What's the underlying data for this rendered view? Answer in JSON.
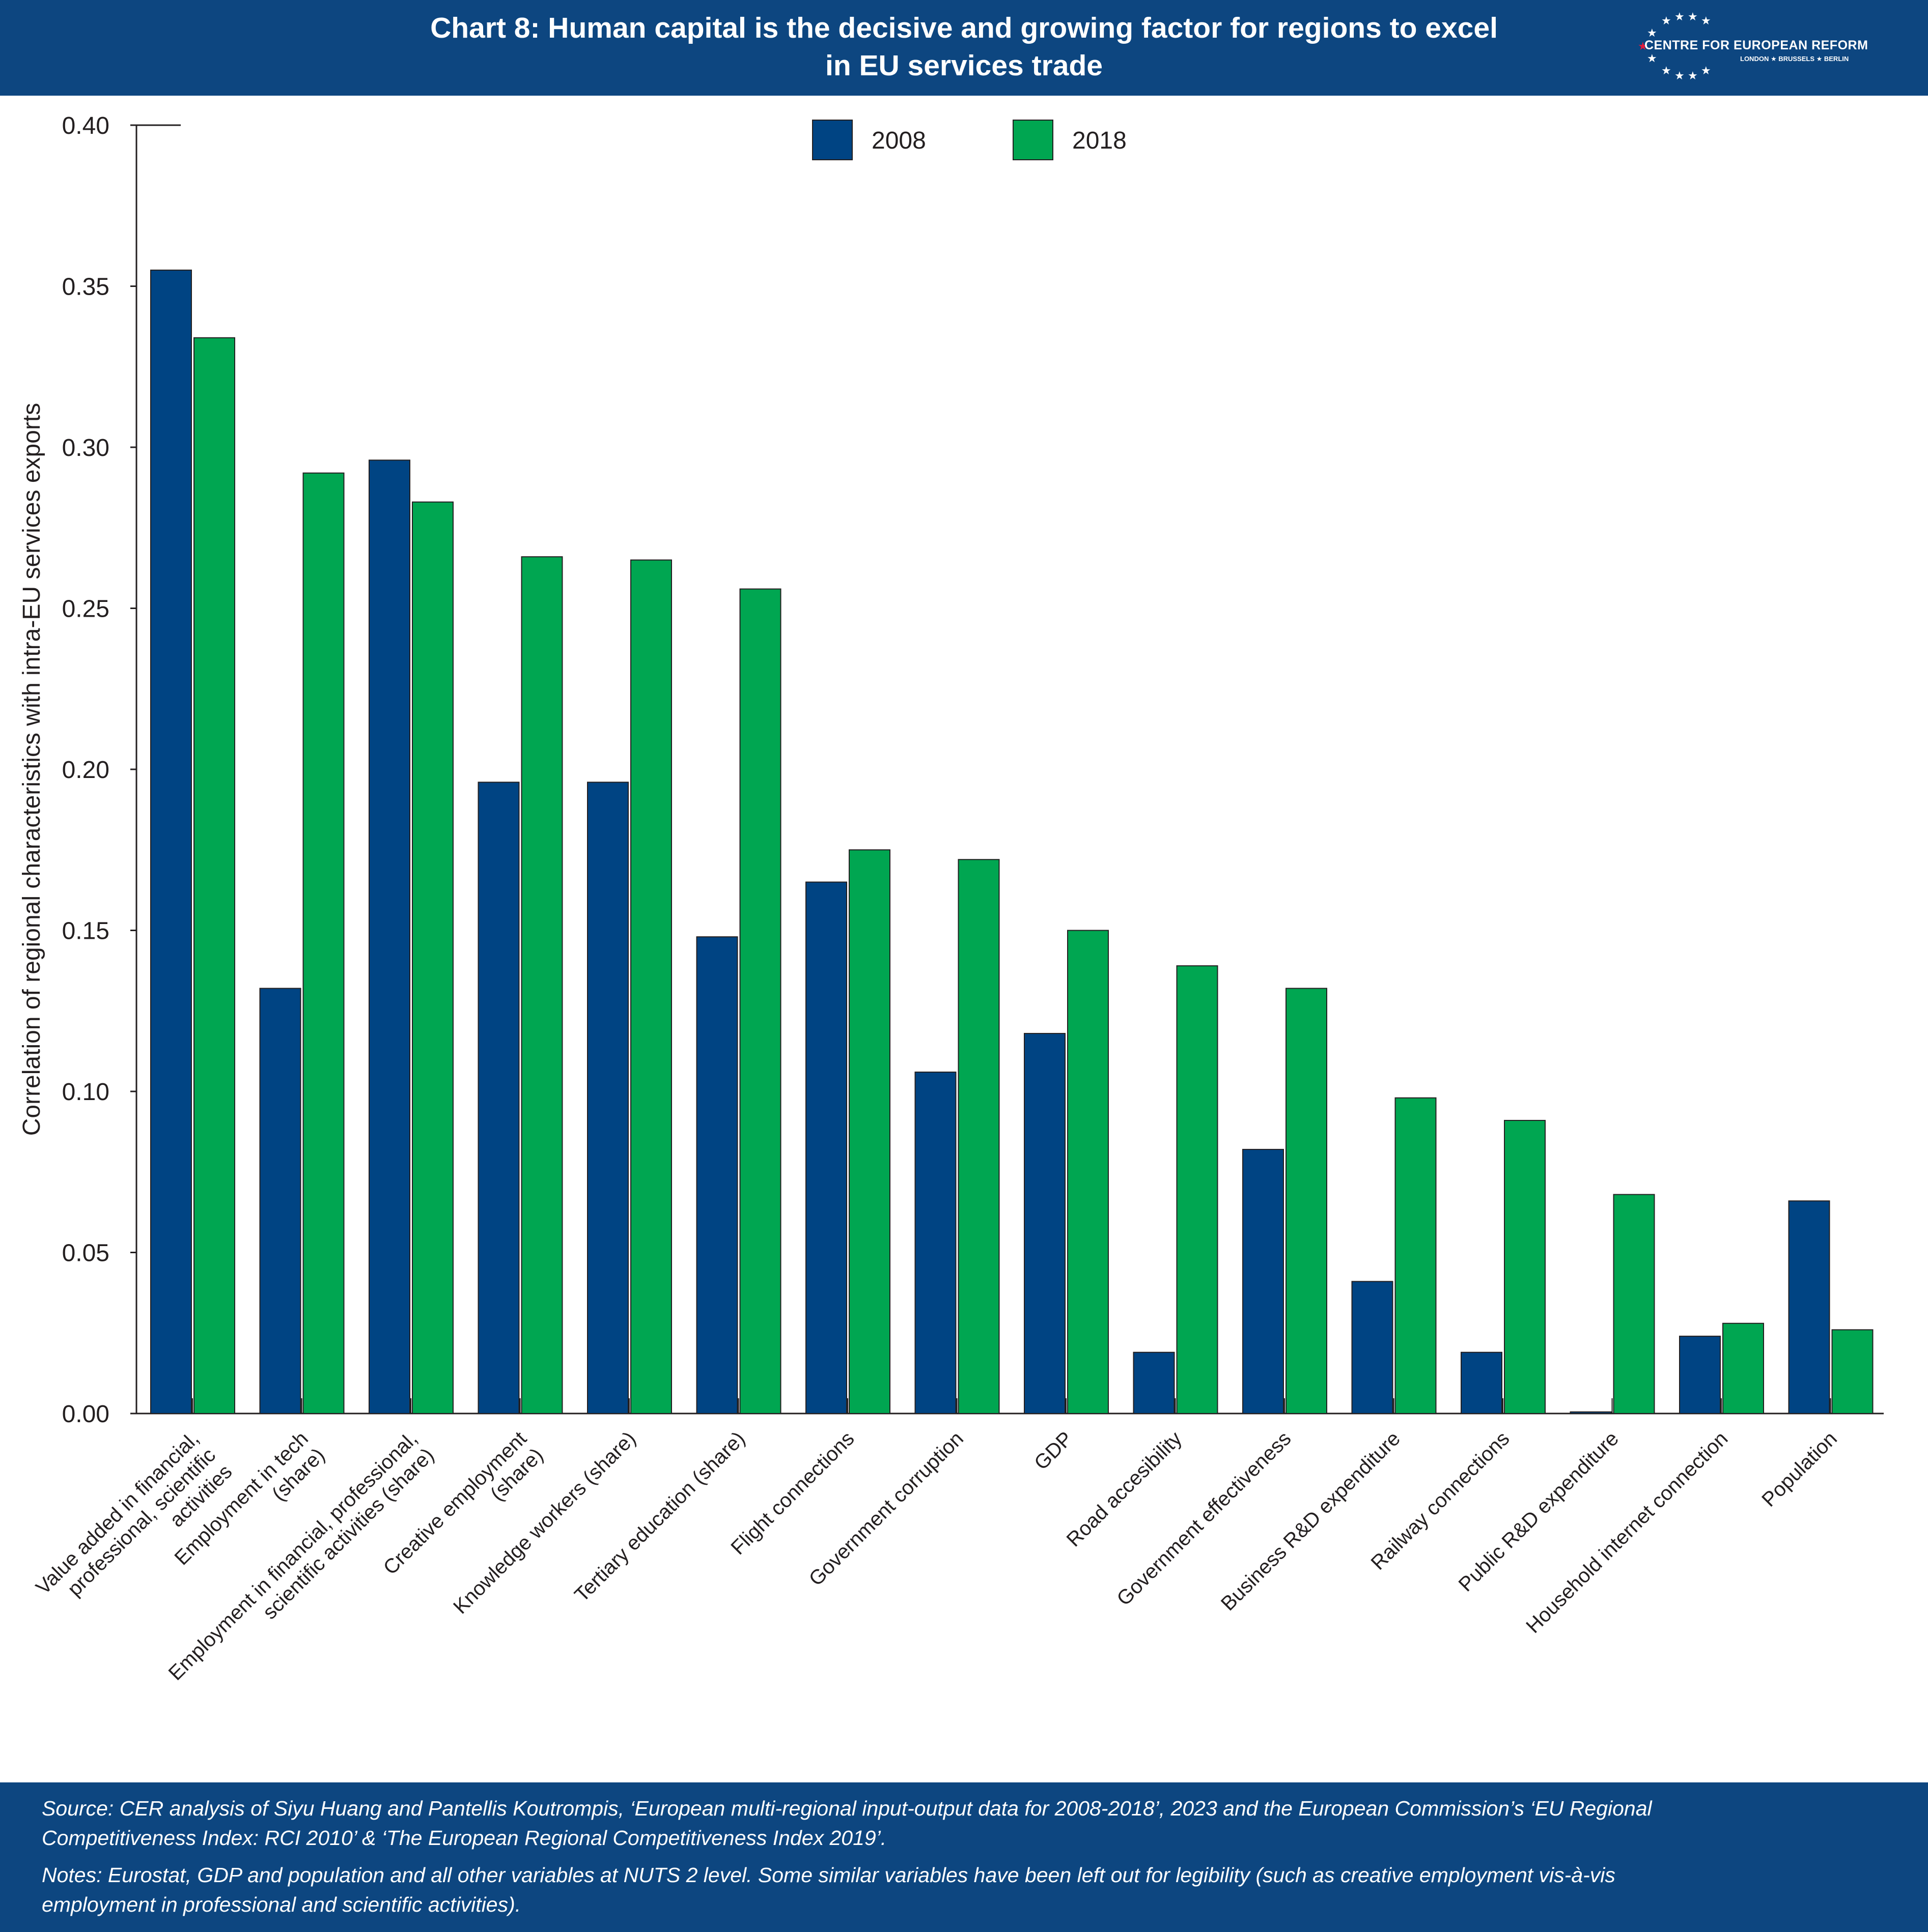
{
  "header": {
    "title_line1": "Chart 8: Human capital is the decisive and growing factor for regions to excel",
    "title_line2": "in EU services trade",
    "logo_text": "CENTRE FOR EUROPEAN REFORM",
    "logo_sub": "LONDON ★ BRUSSELS ★ BERLIN"
  },
  "colors": {
    "header_bg": "#0d4680",
    "series_2008": "#004483",
    "series_2018": "#00a651"
  },
  "footer": {
    "source_line1": "Source: CER analysis of Siyu Huang and Pantellis Koutrompis, ‘European multi-regional input-output data for 2008-2018’, 2023 and the European Commission’s ‘EU Regional",
    "source_line2": "Competitiveness Index: RCI 2010’ & ‘The European Regional Competitiveness Index 2019’.",
    "notes_line1": "Notes: Eurostat, GDP and population and all other variables at NUTS 2 level. Some similar variables have been left out for legibility (such as creative employment vis-à-vis",
    "notes_line2": "employment in professional and scientific activities)."
  },
  "chart_data": {
    "type": "bar",
    "ylabel": "Correlation of regional characteristics with intra-EU services exports",
    "ylim": [
      0,
      0.4
    ],
    "yticks": [
      "0.00",
      "0.05",
      "0.10",
      "0.15",
      "0.20",
      "0.25",
      "0.30",
      "0.35",
      "0.40"
    ],
    "legend_position": "top-center",
    "grid": false,
    "categories": [
      [
        "Value added in financial,",
        "professional, scientific",
        "activities"
      ],
      [
        "Employment in tech",
        "(share)"
      ],
      [
        "Employment in financial, professional,",
        "scientific activities (share)"
      ],
      [
        "Creative employment",
        "(share)"
      ],
      [
        "Knowledge workers (share)"
      ],
      [
        "Tertiary education (share)"
      ],
      [
        "Flight connections"
      ],
      [
        "Government corruption"
      ],
      [
        "GDP"
      ],
      [
        "Road accesibility"
      ],
      [
        "Government effectiveness"
      ],
      [
        "Business R&D expenditure"
      ],
      [
        "Railway connections"
      ],
      [
        "Public R&D expenditure"
      ],
      [
        "Household internet connection"
      ],
      [
        "Population"
      ]
    ],
    "series": [
      {
        "name": "2008",
        "values": [
          0.355,
          0.132,
          0.296,
          0.196,
          0.196,
          0.148,
          0.165,
          0.106,
          0.118,
          0.019,
          0.082,
          0.041,
          0.019,
          0.0005,
          0.024,
          0.066
        ]
      },
      {
        "name": "2018",
        "values": [
          0.334,
          0.292,
          0.283,
          0.266,
          0.265,
          0.256,
          0.175,
          0.172,
          0.15,
          0.139,
          0.132,
          0.098,
          0.091,
          0.068,
          0.028,
          0.026
        ]
      }
    ]
  }
}
